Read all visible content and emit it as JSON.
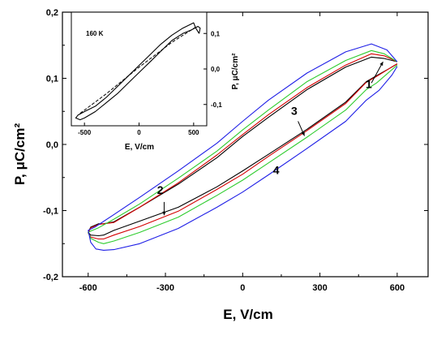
{
  "chart_data": [
    {
      "type": "line",
      "xlabel": "E, V/cm",
      "ylabel": "P, μC/cm²",
      "xlim": [
        -700,
        720
      ],
      "ylim": [
        -0.2,
        0.2
      ],
      "x_ticks": [
        "-600",
        "-300",
        "0",
        "300",
        "600"
      ],
      "y_ticks": [
        "0,2",
        "0,1",
        "0,0",
        "-0,1",
        "-0,2"
      ],
      "legend": "none",
      "series": [
        {
          "name": "1",
          "color": "#000000",
          "x": [
            600,
            550,
            500,
            400,
            250,
            100,
            0,
            -100,
            -250,
            -400,
            -500,
            -540,
            -560,
            -590,
            -600,
            -590,
            -560,
            -540,
            -500,
            -400,
            -250,
            -100,
            0,
            100,
            250,
            400,
            480,
            520,
            570,
            600
          ],
          "y": [
            0.125,
            0.13,
            0.132,
            0.117,
            0.083,
            0.041,
            0.012,
            -0.02,
            -0.06,
            -0.095,
            -0.117,
            -0.12,
            -0.12,
            -0.125,
            -0.133,
            -0.137,
            -0.138,
            -0.137,
            -0.13,
            -0.116,
            -0.095,
            -0.064,
            -0.04,
            -0.015,
            0.023,
            0.064,
            0.095,
            0.104,
            0.115,
            0.122
          ]
        },
        {
          "name": "2",
          "color": "#d40000",
          "x": [
            600,
            550,
            500,
            400,
            250,
            100,
            0,
            -100,
            -250,
            -400,
            -500,
            -540,
            -560,
            -590,
            -600,
            -590,
            -560,
            -540,
            -500,
            -400,
            -250,
            -100,
            0,
            100,
            250,
            400,
            480,
            520,
            570,
            600
          ],
          "y": [
            0.125,
            0.134,
            0.137,
            0.12,
            0.086,
            0.045,
            0.015,
            -0.016,
            -0.058,
            -0.095,
            -0.118,
            -0.12,
            -0.121,
            -0.126,
            -0.134,
            -0.14,
            -0.143,
            -0.143,
            -0.137,
            -0.124,
            -0.101,
            -0.068,
            -0.045,
            -0.018,
            0.021,
            0.062,
            0.094,
            0.103,
            0.115,
            0.122
          ]
        },
        {
          "name": "3",
          "color": "#2ecc2e",
          "x": [
            600,
            550,
            500,
            400,
            250,
            100,
            0,
            -100,
            -250,
            -400,
            -500,
            -560,
            -590,
            -600,
            -590,
            -560,
            -540,
            -500,
            -400,
            -250,
            -100,
            0,
            100,
            250,
            400,
            480,
            520,
            570,
            600
          ],
          "y": [
            0.125,
            0.137,
            0.142,
            0.127,
            0.095,
            0.052,
            0.022,
            -0.01,
            -0.051,
            -0.09,
            -0.113,
            -0.126,
            -0.131,
            -0.133,
            -0.142,
            -0.148,
            -0.15,
            -0.146,
            -0.133,
            -0.11,
            -0.077,
            -0.054,
            -0.028,
            0.011,
            0.052,
            0.083,
            0.093,
            0.11,
            0.12
          ]
        },
        {
          "name": "4",
          "color": "#1e1ee6",
          "x": [
            600,
            560,
            500,
            400,
            250,
            100,
            0,
            -100,
            -250,
            -400,
            -500,
            -570,
            -600,
            -590,
            -570,
            -540,
            -500,
            -400,
            -250,
            -100,
            0,
            100,
            250,
            400,
            480,
            530,
            580,
            600
          ],
          "y": [
            0.125,
            0.143,
            0.152,
            0.14,
            0.108,
            0.067,
            0.035,
            0.002,
            -0.04,
            -0.08,
            -0.106,
            -0.124,
            -0.13,
            -0.148,
            -0.158,
            -0.16,
            -0.159,
            -0.15,
            -0.127,
            -0.095,
            -0.072,
            -0.046,
            -0.006,
            0.035,
            0.067,
            0.082,
            0.105,
            0.118
          ]
        }
      ],
      "annotations": [
        {
          "text": "1",
          "x": 490,
          "y": 0.085
        },
        {
          "text": "2",
          "x": -320,
          "y": -0.075
        },
        {
          "text": "3",
          "x": 200,
          "y": 0.045
        },
        {
          "text": "4",
          "x": 130,
          "y": -0.045
        }
      ]
    },
    {
      "type": "line",
      "title": "160 K",
      "xlabel": "E, V/cm",
      "ylabel": "P, μC/cm²",
      "xlim": [
        -620,
        620
      ],
      "ylim": [
        -0.16,
        0.16
      ],
      "x_ticks": [
        "-500",
        "0",
        "500"
      ],
      "y_ticks": [
        "0,1",
        "0,0",
        "-0,1"
      ],
      "series": [
        {
          "name": "",
          "color": "#000000",
          "x": [
            550,
            520,
            500,
            400,
            300,
            200,
            100,
            0,
            -100,
            -200,
            -300,
            -400,
            -500,
            -560,
            -580,
            -540,
            -500,
            -400,
            -300,
            -200,
            -100,
            0,
            100,
            200,
            300,
            400,
            480,
            540,
            560,
            550
          ],
          "y": [
            0.1,
            0.115,
            0.13,
            0.115,
            0.095,
            0.07,
            0.04,
            0.01,
            -0.02,
            -0.05,
            -0.08,
            -0.105,
            -0.12,
            -0.13,
            -0.138,
            -0.143,
            -0.138,
            -0.12,
            -0.095,
            -0.07,
            -0.04,
            -0.01,
            0.02,
            0.05,
            0.08,
            0.1,
            0.11,
            0.12,
            0.115,
            0.1
          ]
        }
      ]
    }
  ]
}
